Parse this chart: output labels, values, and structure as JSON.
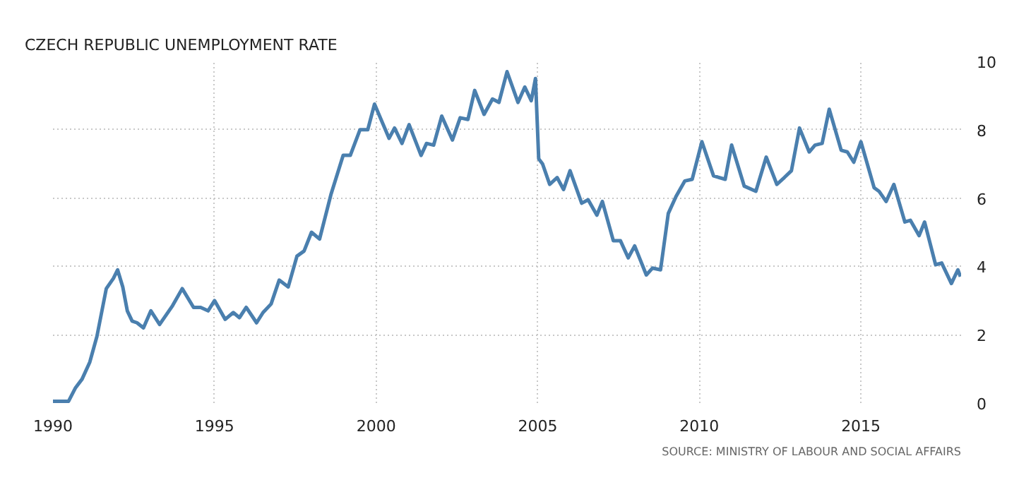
{
  "chart_data": {
    "type": "line",
    "title": "CZECH REPUBLIC UNEMPLOYMENT RATE",
    "annotations": [
      "SOURCE: MINISTRY OF LABOUR AND SOCIAL AFFAIRS"
    ],
    "x": [
      1990.0,
      1990.48,
      1990.7,
      1990.9,
      1991.14,
      1991.36,
      1991.65,
      1991.87,
      1992.0,
      1992.16,
      1992.3,
      1992.45,
      1992.6,
      1992.8,
      1993.03,
      1993.3,
      1993.7,
      1994.0,
      1994.35,
      1994.57,
      1994.8,
      1995.0,
      1995.33,
      1995.58,
      1995.77,
      1995.98,
      1996.3,
      1996.5,
      1996.75,
      1997.0,
      1997.28,
      1997.55,
      1997.77,
      1998.0,
      1998.25,
      1998.6,
      1998.98,
      1999.2,
      1999.5,
      1999.74,
      1999.95,
      2000.4,
      2000.57,
      2000.8,
      2001.02,
      2001.39,
      2001.56,
      2001.78,
      2002.03,
      2002.36,
      2002.6,
      2002.84,
      2003.05,
      2003.34,
      2003.6,
      2003.8,
      2004.05,
      2004.39,
      2004.6,
      2004.8,
      2004.93,
      2005.03,
      2005.15,
      2005.37,
      2005.6,
      2005.8,
      2006.0,
      2006.36,
      2006.56,
      2006.83,
      2007.0,
      2007.34,
      2007.56,
      2007.8,
      2008.0,
      2008.36,
      2008.55,
      2008.8,
      2009.04,
      2009.28,
      2009.55,
      2009.78,
      2010.08,
      2010.44,
      2010.8,
      2011.0,
      2011.39,
      2011.75,
      2012.07,
      2012.4,
      2012.63,
      2012.85,
      2013.1,
      2013.4,
      2013.58,
      2013.8,
      2014.02,
      2014.39,
      2014.58,
      2014.78,
      2015.0,
      2015.41,
      2015.56,
      2015.78,
      2016.02,
      2016.36,
      2016.53,
      2016.8,
      2016.97,
      2017.31,
      2017.5,
      2017.8,
      2018.0,
      2018.08
    ],
    "series": [
      {
        "color": "#4a7fae",
        "values": [
          0.05,
          0.05,
          0.45,
          0.7,
          1.2,
          1.95,
          3.35,
          3.65,
          3.9,
          3.4,
          2.7,
          2.4,
          2.35,
          2.2,
          2.7,
          2.3,
          2.85,
          3.35,
          2.8,
          2.8,
          2.7,
          3.0,
          2.45,
          2.65,
          2.5,
          2.8,
          2.35,
          2.65,
          2.9,
          3.6,
          3.4,
          4.3,
          4.45,
          5.0,
          4.8,
          6.1,
          7.25,
          7.25,
          8.0,
          8.0,
          8.75,
          7.75,
          8.05,
          7.6,
          8.15,
          7.25,
          7.6,
          7.55,
          8.4,
          7.7,
          8.35,
          8.3,
          9.15,
          8.45,
          8.9,
          8.8,
          9.7,
          8.8,
          9.25,
          8.85,
          9.5,
          7.15,
          7.0,
          6.4,
          6.6,
          6.25,
          6.8,
          5.85,
          5.95,
          5.5,
          5.9,
          4.75,
          4.75,
          4.25,
          4.6,
          3.75,
          3.95,
          3.9,
          5.55,
          6.05,
          6.5,
          6.55,
          7.65,
          6.65,
          6.55,
          7.55,
          6.35,
          6.2,
          7.2,
          6.4,
          6.6,
          6.8,
          8.05,
          7.35,
          7.55,
          7.6,
          8.6,
          7.4,
          7.35,
          7.05,
          7.65,
          6.3,
          6.2,
          5.9,
          6.4,
          5.3,
          5.35,
          4.9,
          5.3,
          4.05,
          4.1,
          3.5,
          3.9,
          3.7
        ]
      }
    ],
    "xlim": [
      1990,
      2018.1
    ],
    "ylim": [
      0,
      10
    ],
    "xticks": [
      1990,
      1995,
      2000,
      2005,
      2010,
      2015
    ],
    "yticks": [
      0,
      2,
      4,
      6,
      8,
      10
    ],
    "grid": true,
    "line_style": "solid"
  }
}
